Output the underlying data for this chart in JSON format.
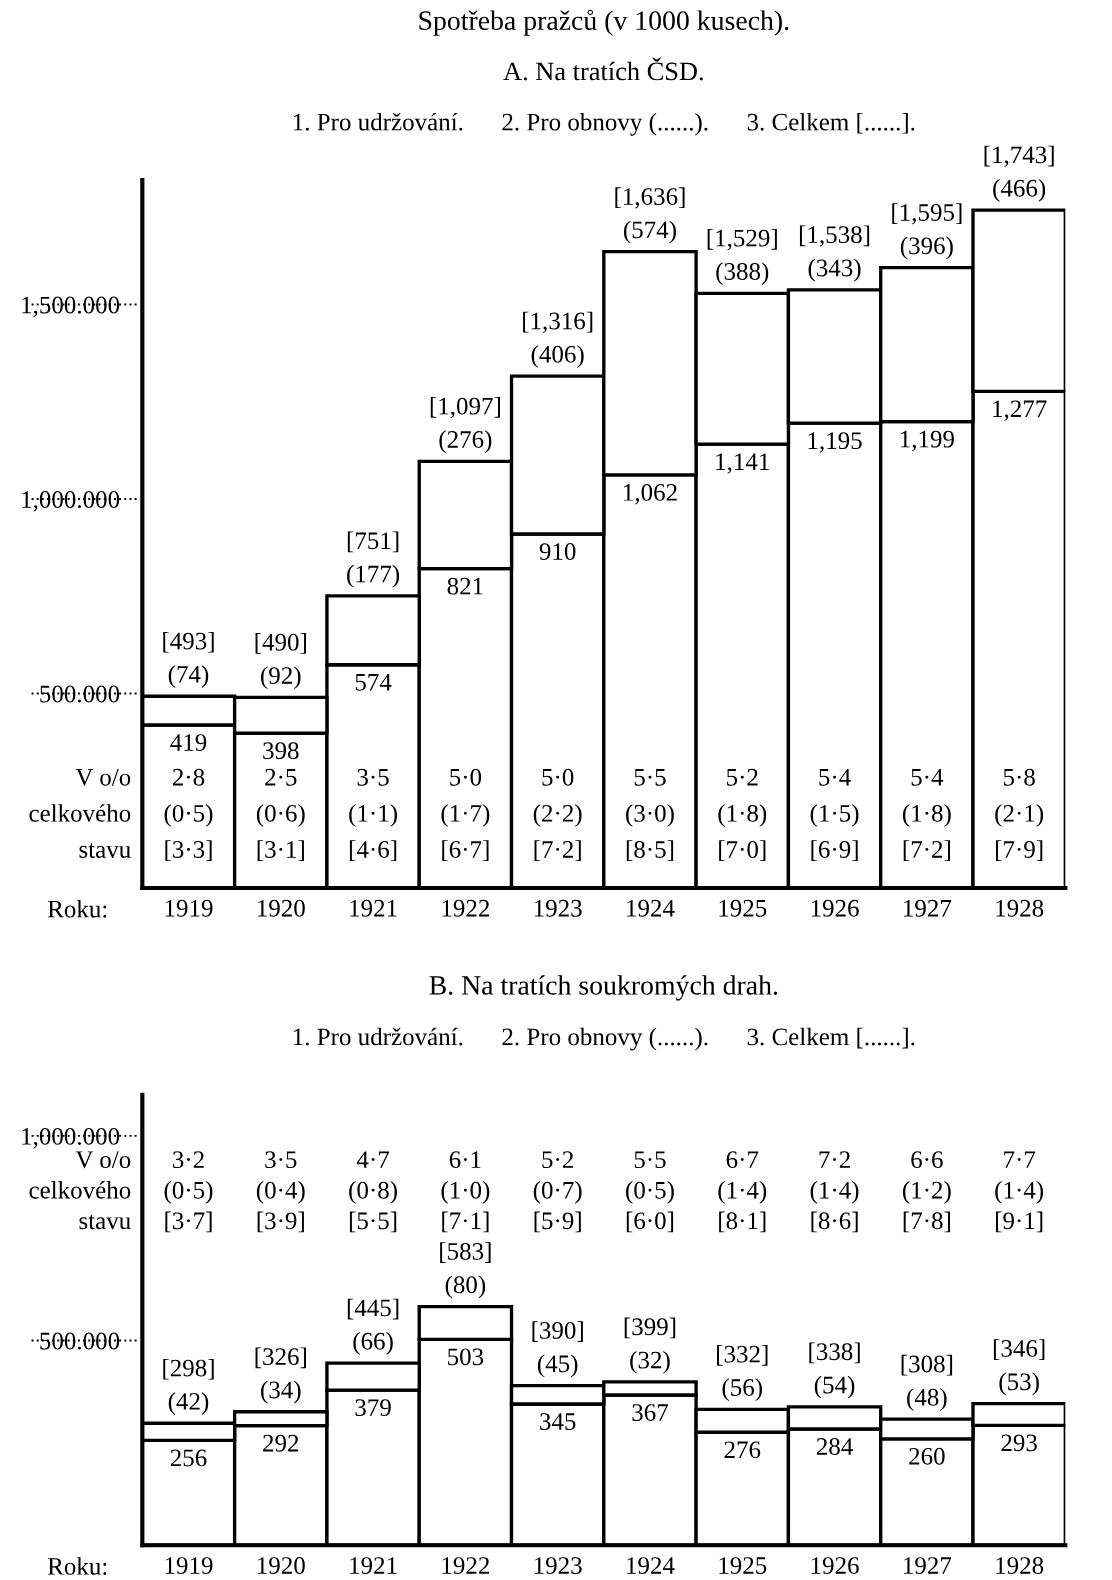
{
  "chart_data": [
    {
      "type": "bar",
      "stacked": true,
      "title": "Spotřeba pražců (v 1000 kusech).",
      "subtitle": "A. Na tratích ČSD.",
      "xlabel": "Roku:",
      "categories": [
        "1919",
        "1920",
        "1921",
        "1922",
        "1923",
        "1924",
        "1925",
        "1926",
        "1927",
        "1928"
      ],
      "series": [
        {
          "color": "#ffffff",
          "values": [
            419,
            398,
            574,
            821,
            910,
            1062,
            1141,
            1195,
            1199,
            1277
          ],
          "value_labels": [
            "419",
            "398",
            "574",
            "821",
            "910",
            "1,062",
            "1,141",
            "1,195",
            "1,199",
            "1,277"
          ]
        },
        {
          "color": "#ffffff",
          "values": [
            74,
            92,
            177,
            276,
            406,
            574,
            388,
            343,
            396,
            466
          ],
          "value_labels": [
            "(74)",
            "(92)",
            "(177)",
            "(276)",
            "(406)",
            "(574)",
            "(388)",
            "(343)",
            "(396)",
            "(466)"
          ]
        }
      ],
      "totals": [
        "[493]",
        "[490]",
        "[751]",
        "[1,097]",
        "[1,316]",
        "[1,636]",
        "[1,529]",
        "[1,538]",
        "[1,595]",
        "[1,743]"
      ],
      "ylim": [
        0,
        1820
      ],
      "yticks": [
        {
          "value": 500,
          "label": "500.000"
        },
        {
          "value": 1000,
          "label": "1,000.000"
        },
        {
          "value": 1500,
          "label": "1,500.000"
        }
      ],
      "annotations": [
        "1. Pro udržování.      2. Pro obnovy (......).      3. Celkem [......].",
        "V o/o",
        "celkového",
        "stavu",
        "2·8",
        "2·5",
        "3·5",
        "5·0",
        "5·0",
        "5·5",
        "5·2",
        "5·4",
        "5·4",
        "5·8",
        "(0·5)",
        "(0·6)",
        "(1·1)",
        "(1·7)",
        "(2·2)",
        "(3·0)",
        "(1·8)",
        "(1·5)",
        "(1·8)",
        "(2·1)",
        "[3·3]",
        "[3·1]",
        "[4·6]",
        "[6·7]",
        "[7·2]",
        "[8·5]",
        "[7·0]",
        "[6·9]",
        "[7·2]",
        "[7·9]"
      ]
    },
    {
      "type": "bar",
      "stacked": true,
      "title": "B. Na tratích soukromých drah.",
      "xlabel": "Roku:",
      "categories": [
        "1919",
        "1920",
        "1921",
        "1922",
        "1923",
        "1924",
        "1925",
        "1926",
        "1927",
        "1928"
      ],
      "series": [
        {
          "color": "#ffffff",
          "values": [
            256,
            292,
            379,
            503,
            345,
            367,
            276,
            284,
            260,
            293
          ],
          "value_labels": [
            "256",
            "292",
            "379",
            "503",
            "345",
            "367",
            "276",
            "284",
            "260",
            "293"
          ]
        },
        {
          "color": "#ffffff",
          "values": [
            42,
            34,
            66,
            80,
            45,
            32,
            56,
            54,
            48,
            53
          ],
          "value_labels": [
            "(42)",
            "(34)",
            "(66)",
            "(80)",
            "(45)",
            "(32)",
            "(56)",
            "(54)",
            "(48)",
            "(53)"
          ]
        }
      ],
      "totals": [
        "[298]",
        "[326]",
        "[445]",
        "[583]",
        "[390]",
        "[399]",
        "[332]",
        "[338]",
        "[308]",
        "[346]"
      ],
      "ylim": [
        0,
        1100
      ],
      "yticks": [
        {
          "value": 500,
          "label": "500.000"
        },
        {
          "value": 1000,
          "label": "1,000.000"
        }
      ],
      "annotations": [
        "1. Pro udržování.      2. Pro obnovy (......).      3. Celkem [......].",
        "V o/o",
        "celkového",
        "stavu",
        "3·2",
        "3·5",
        "4·7",
        "6·1",
        "5·2",
        "5·5",
        "6·7",
        "7·2",
        "6·6",
        "7·7",
        "(0·5)",
        "(0·4)",
        "(0·8)",
        "(1·0)",
        "(0·7)",
        "(0·5)",
        "(1·4)",
        "(1·4)",
        "(1·2)",
        "(1·4)",
        "[3·7]",
        "[3·9]",
        "[5·5]",
        "[7·1]",
        "[5·9]",
        "[6·0]",
        "[8·1]",
        "[8·6]",
        "[7·8]",
        "[9·1]"
      ]
    }
  ]
}
